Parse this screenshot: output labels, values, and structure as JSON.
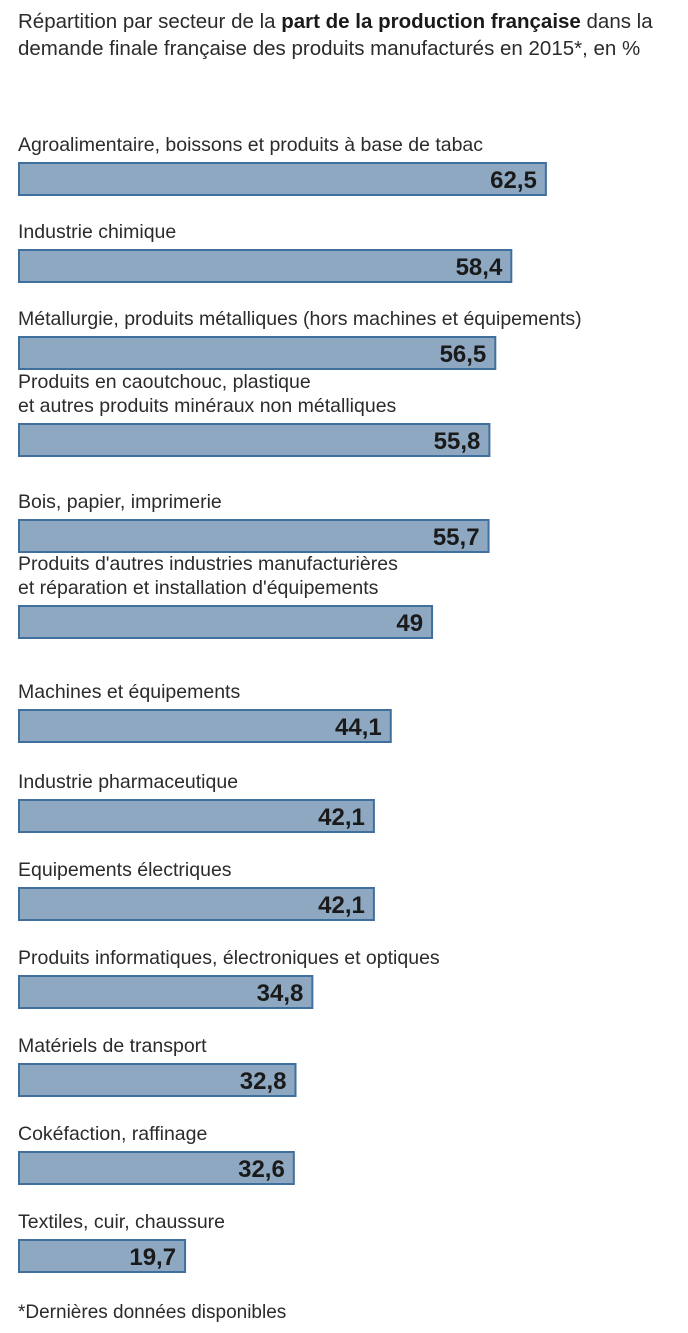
{
  "header": {
    "title_part1": "Répartition par secteur de la ",
    "title_bold": "part de la production française",
    "title_part2": " dans la demande finale française des produits manufacturés en 2015*, en %"
  },
  "footnote": "*Dernières données disponibles",
  "colors": {
    "bar_fill": "#8fa8c2",
    "bar_stroke": "#3f6f9c"
  },
  "chart_data": {
    "type": "bar",
    "orientation": "horizontal",
    "title": "Répartition par secteur de la part de la production française dans la demande finale française des produits manufacturés en 2015*, en %",
    "categories": [
      "Agroalimentaire, boissons et produits à base de tabac",
      "Industrie chimique",
      "Métallurgie, produits métalliques (hors machines et équipements)",
      "Produits en caoutchouc, plastique\net autres produits minéraux non métalliques",
      "Bois, papier, imprimerie",
      "Produits d'autres industries manufacturières\net réparation et installation d'équipements",
      "Machines et équipements",
      "Industrie pharmaceutique",
      "Equipements électriques",
      "Produits informatiques, électroniques et optiques",
      "Matériels de transport",
      "Cokéfaction, raffinage",
      "Textiles, cuir, chaussure"
    ],
    "values": [
      62.5,
      58.4,
      56.5,
      55.8,
      55.7,
      49,
      44.1,
      42.1,
      42.1,
      34.8,
      32.8,
      32.6,
      19.7
    ],
    "value_labels": [
      "62,5",
      "58,4",
      "56,5",
      "55,8",
      "55,7",
      "49",
      "44,1",
      "42,1",
      "42,1",
      "34,8",
      "32,8",
      "32,6",
      "19,7"
    ],
    "xlabel": "",
    "ylabel": "",
    "grid": false,
    "legend": "none"
  }
}
